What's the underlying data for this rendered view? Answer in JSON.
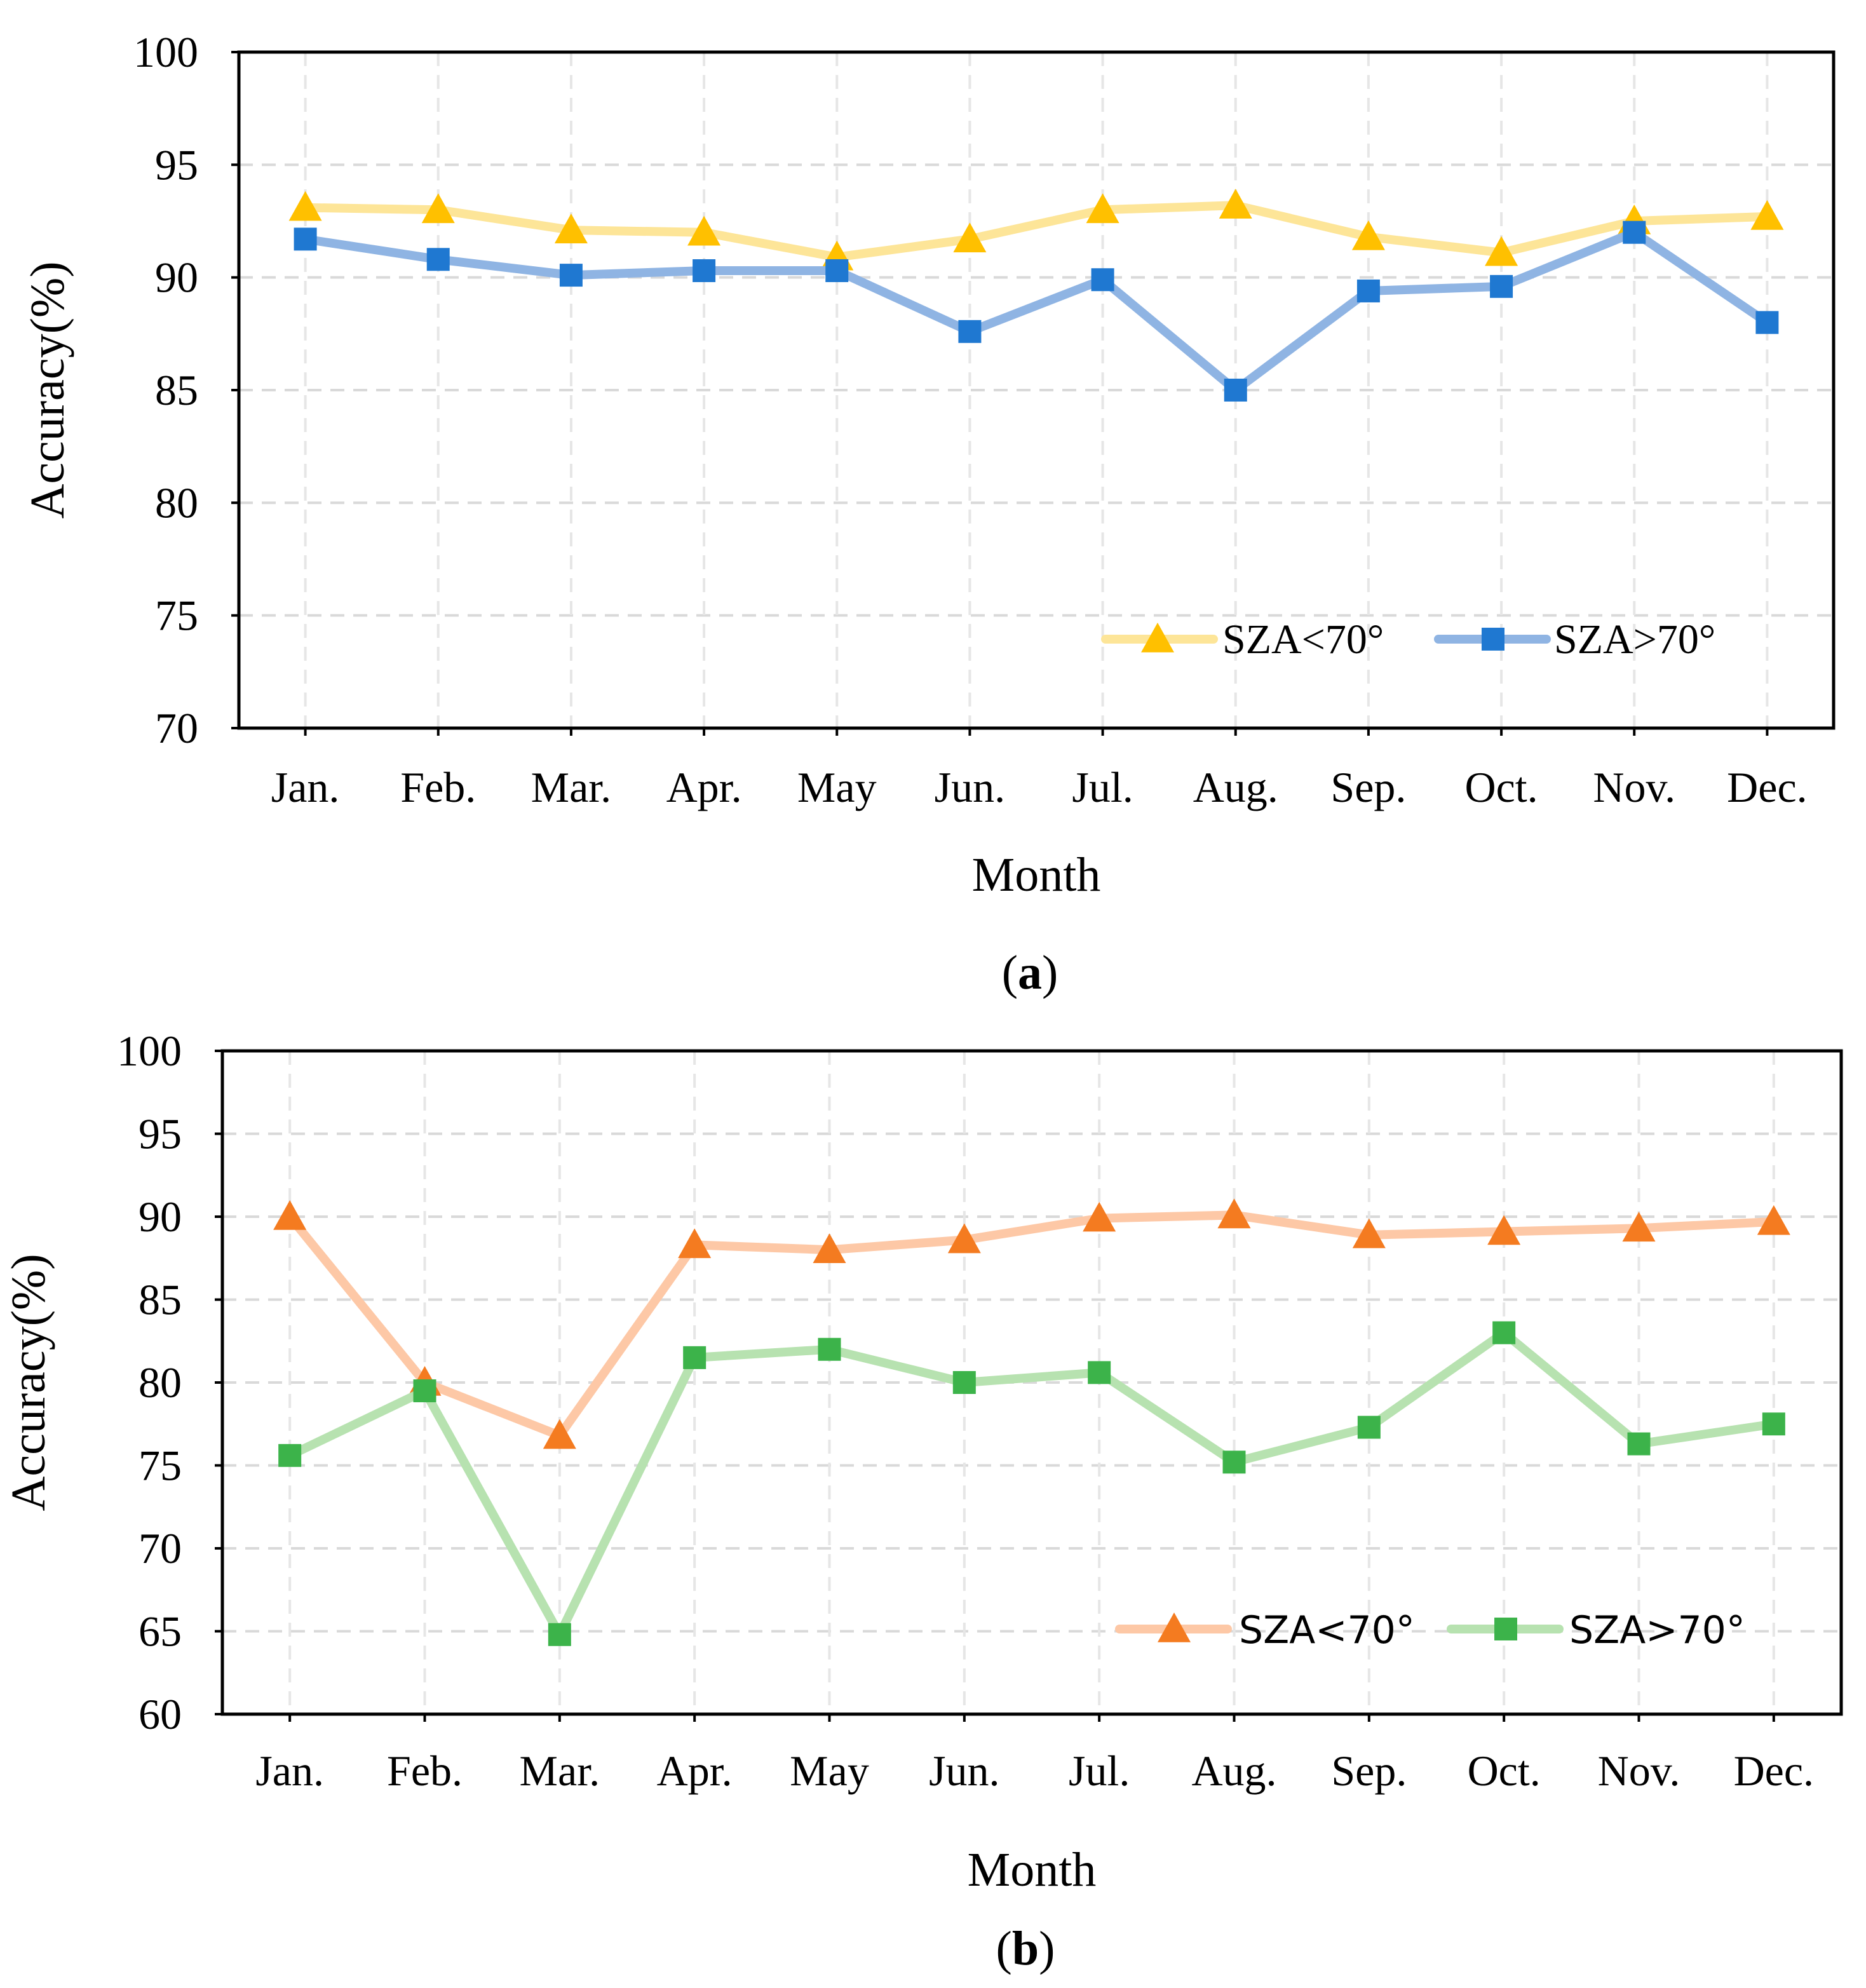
{
  "chart_data": [
    {
      "type": "line",
      "panel_label": "a",
      "xlabel": "Month",
      "ylabel": "Accuracy(%)",
      "ylim": [
        70,
        100
      ],
      "yticks": [
        70,
        75,
        80,
        85,
        90,
        95,
        100
      ],
      "categories": [
        "Jan.",
        "Feb.",
        "Mar.",
        "Apr.",
        "May",
        "Jun.",
        "Jul.",
        "Aug.",
        "Sep.",
        "Oct.",
        "Nov.",
        "Dec."
      ],
      "grid": true,
      "legend_position": "bottom-right",
      "series": [
        {
          "name": "SZA<70°",
          "marker": "triangle",
          "line_color": "#FDE598",
          "marker_color": "#FFC000",
          "values": [
            93.1,
            93.0,
            92.1,
            92.0,
            90.9,
            91.7,
            93.0,
            93.2,
            91.8,
            91.1,
            92.5,
            92.7
          ]
        },
        {
          "name": "SZA>70°",
          "marker": "square",
          "line_color": "#8FB4E3",
          "marker_color": "#1F78D1",
          "values": [
            91.7,
            90.8,
            90.1,
            90.3,
            90.3,
            87.6,
            89.9,
            85.0,
            89.4,
            89.6,
            92.0,
            88.0
          ]
        }
      ]
    },
    {
      "type": "line",
      "panel_label": "b",
      "xlabel": "Month",
      "ylabel": "Accuracy(%)",
      "ylim": [
        60,
        100
      ],
      "yticks": [
        60,
        65,
        70,
        75,
        80,
        85,
        90,
        95,
        100
      ],
      "categories": [
        "Jan.",
        "Feb.",
        "Mar.",
        "Apr.",
        "May",
        "Jun.",
        "Jul.",
        "Aug.",
        "Sep.",
        "Oct.",
        "Nov.",
        "Dec."
      ],
      "grid": true,
      "legend_position": "bottom-right",
      "series": [
        {
          "name": "SZA<70°",
          "marker": "triangle",
          "line_color": "#FDC8A6",
          "marker_color": "#F47B20",
          "values": [
            90.0,
            80.0,
            76.8,
            88.3,
            88.0,
            88.6,
            89.9,
            90.1,
            88.9,
            89.1,
            89.3,
            89.7
          ]
        },
        {
          "name": "SZA>70°",
          "marker": "square",
          "line_color": "#B7E2B0",
          "marker_color": "#3CB34A",
          "values": [
            75.6,
            79.5,
            64.8,
            81.5,
            82.0,
            80.0,
            80.6,
            75.2,
            77.3,
            83.0,
            76.3,
            77.5
          ]
        }
      ]
    }
  ]
}
